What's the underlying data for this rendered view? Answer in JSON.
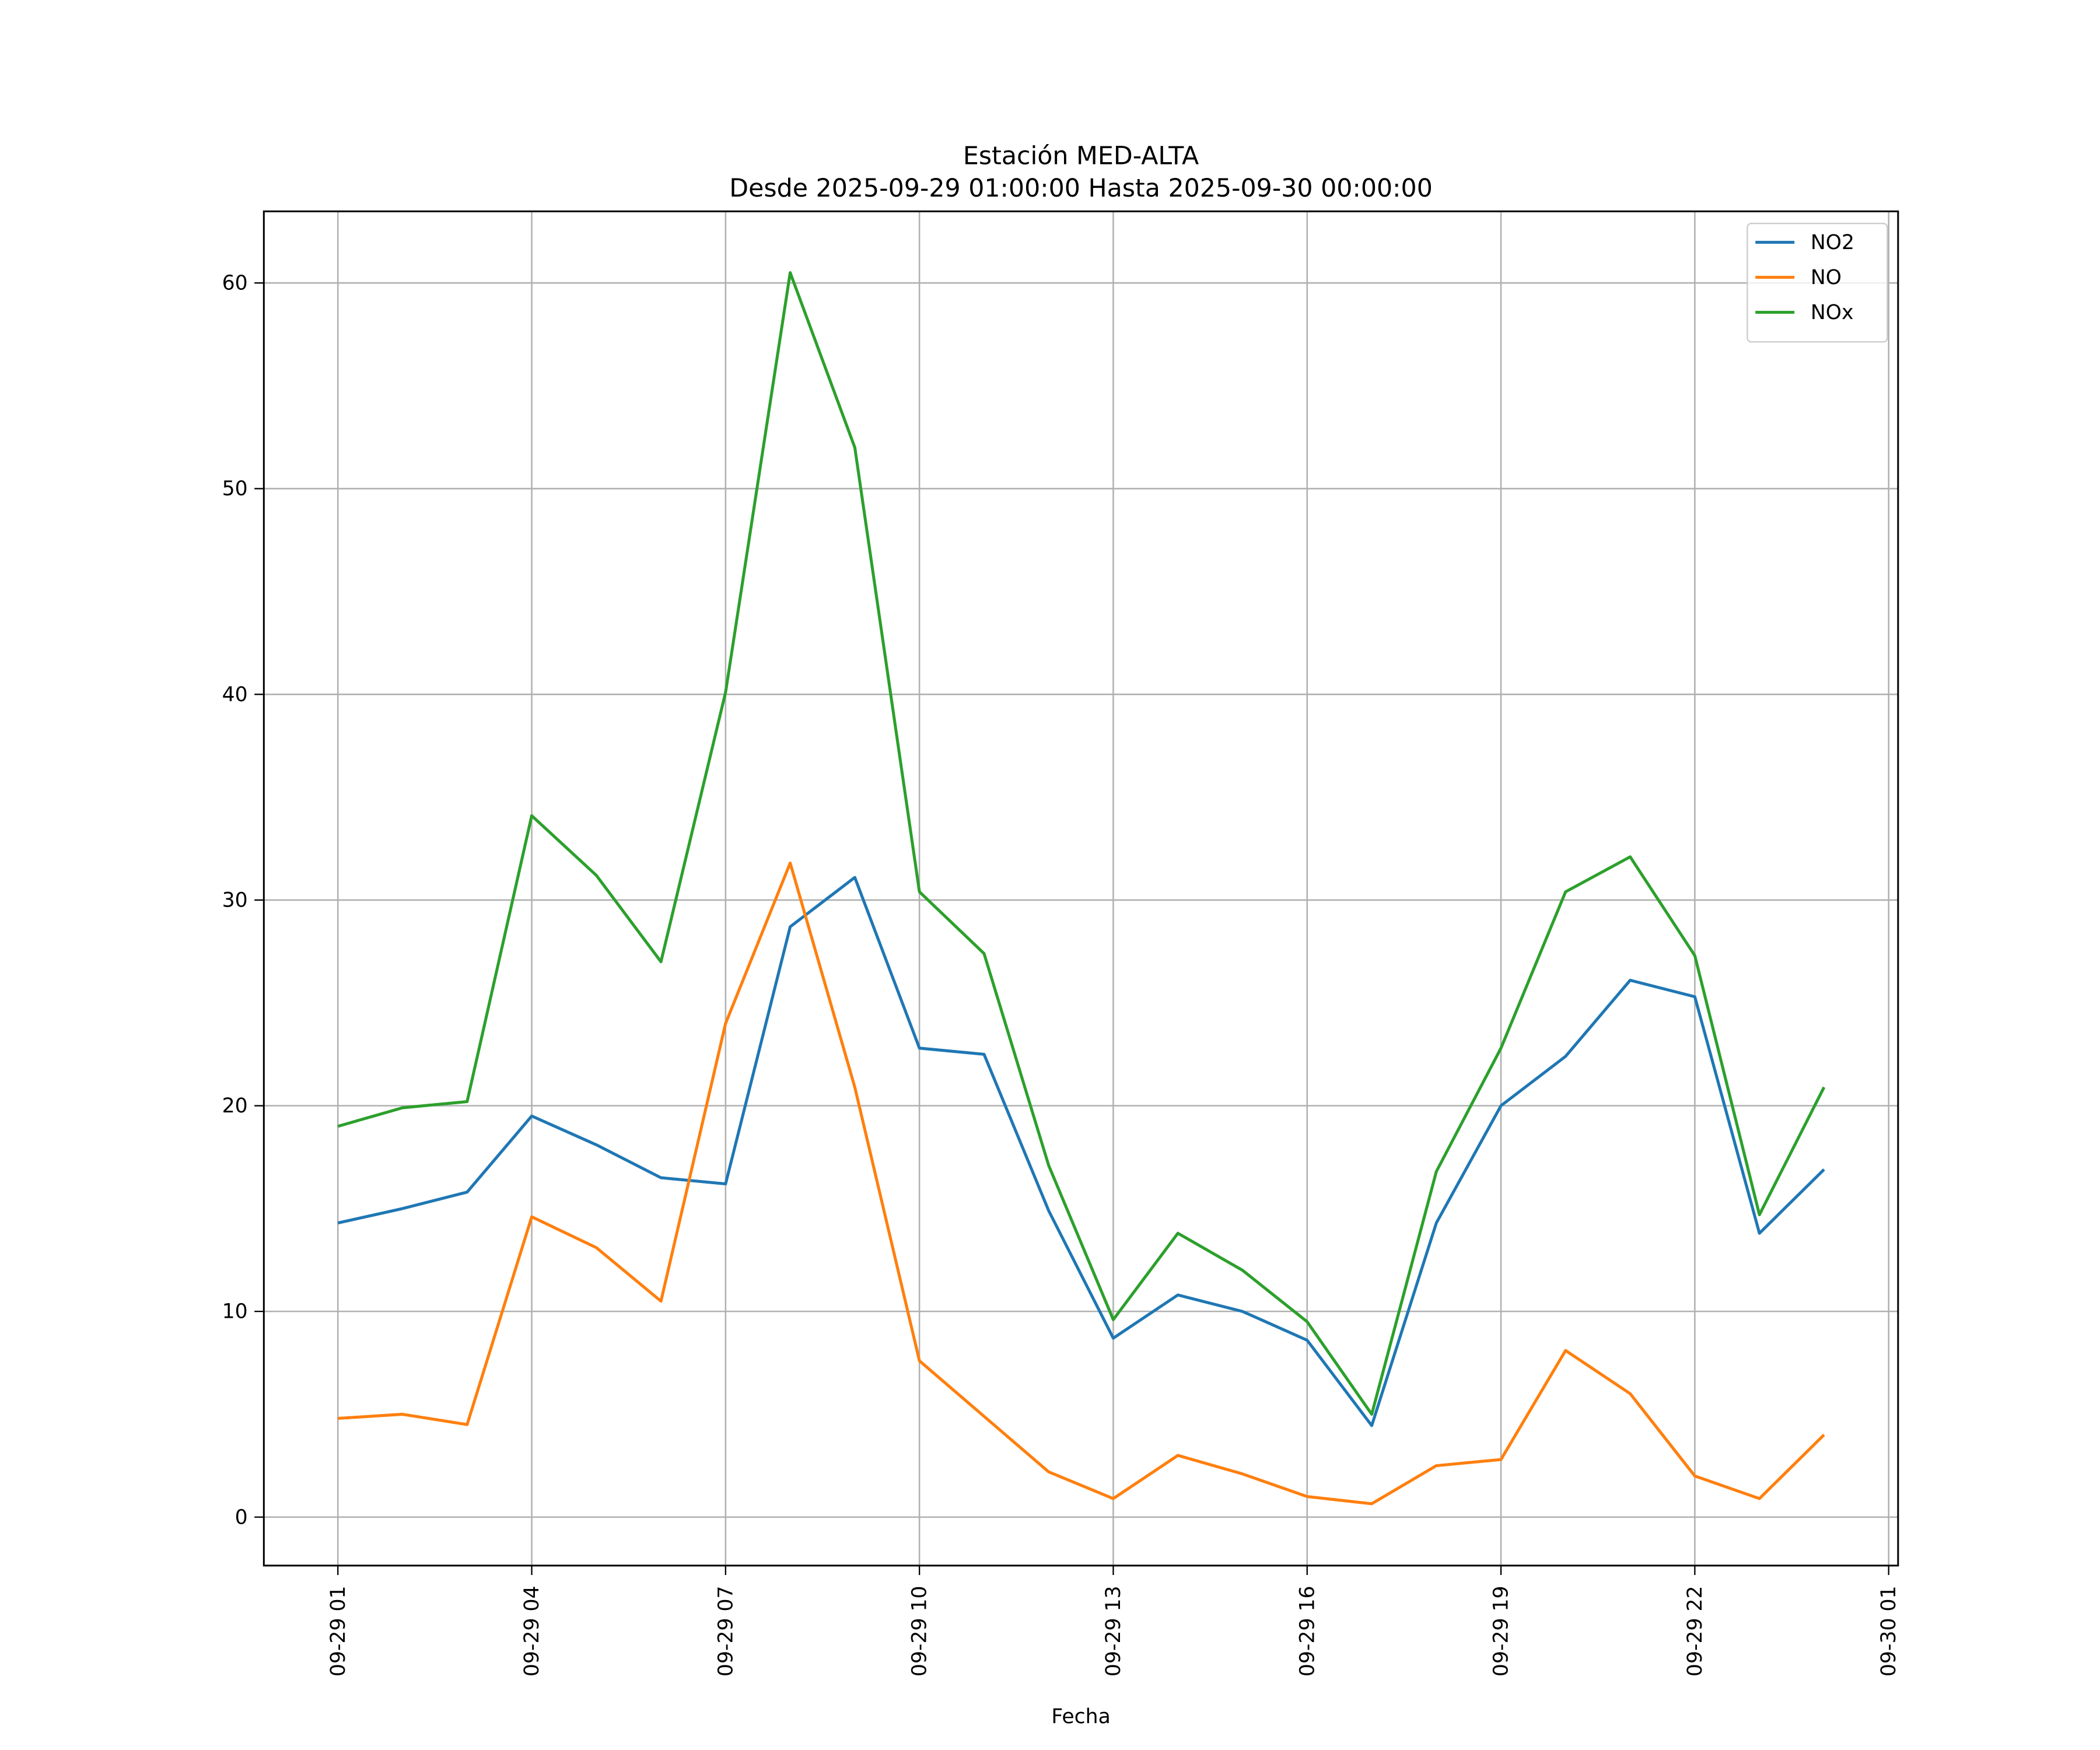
{
  "chart_data": {
    "type": "line",
    "title": "Estación MED-ALTA",
    "subtitle": "Desde 2025-09-29 01:00:00 Hasta 2025-09-30 00:00:00",
    "xlabel": "Fecha",
    "ylabel": "",
    "x": [
      "09-29 01",
      "09-29 02",
      "09-29 03",
      "09-29 04",
      "09-29 05",
      "09-29 06",
      "09-29 07",
      "09-29 08",
      "09-29 09",
      "09-29 10",
      "09-29 11",
      "09-29 12",
      "09-29 13",
      "09-29 14",
      "09-29 15",
      "09-29 16",
      "09-29 17",
      "09-29 18",
      "09-29 19",
      "09-29 20",
      "09-29 21",
      "09-29 22",
      "09-29 23",
      "09-30 00"
    ],
    "xticks": [
      "09-29 01",
      "09-29 04",
      "09-29 07",
      "09-29 10",
      "09-29 13",
      "09-29 16",
      "09-29 19",
      "09-29 22",
      "09-30 01"
    ],
    "yticks": [
      0,
      10,
      20,
      30,
      40,
      50,
      60
    ],
    "ylim": [
      -2.4,
      63.5
    ],
    "grid": true,
    "legend_position": "top-right",
    "series": [
      {
        "name": "NO2",
        "color": "#1f77b4",
        "values": [
          14.3,
          15.0,
          15.8,
          19.5,
          18.1,
          16.5,
          16.2,
          28.7,
          31.1,
          22.8,
          22.5,
          14.9,
          8.7,
          10.8,
          10.0,
          8.6,
          4.45,
          14.3,
          20.0,
          22.4,
          26.1,
          25.3,
          13.8,
          16.9
        ]
      },
      {
        "name": "NO",
        "color": "#ff7f0e",
        "values": [
          4.8,
          5.0,
          4.5,
          14.6,
          13.1,
          10.5,
          24.0,
          31.8,
          20.9,
          7.6,
          4.9,
          2.2,
          0.9,
          3.0,
          2.1,
          1.0,
          0.65,
          2.5,
          2.8,
          8.1,
          6.0,
          2.0,
          0.9,
          4.0
        ]
      },
      {
        "name": "NOx",
        "color": "#2ca02c",
        "values": [
          19.0,
          19.9,
          20.2,
          34.1,
          31.2,
          27.0,
          40.1,
          60.5,
          52.0,
          30.4,
          27.4,
          17.1,
          9.6,
          13.8,
          12.0,
          9.5,
          5.0,
          16.8,
          22.8,
          30.4,
          32.1,
          27.3,
          14.7,
          20.9
        ]
      }
    ]
  }
}
